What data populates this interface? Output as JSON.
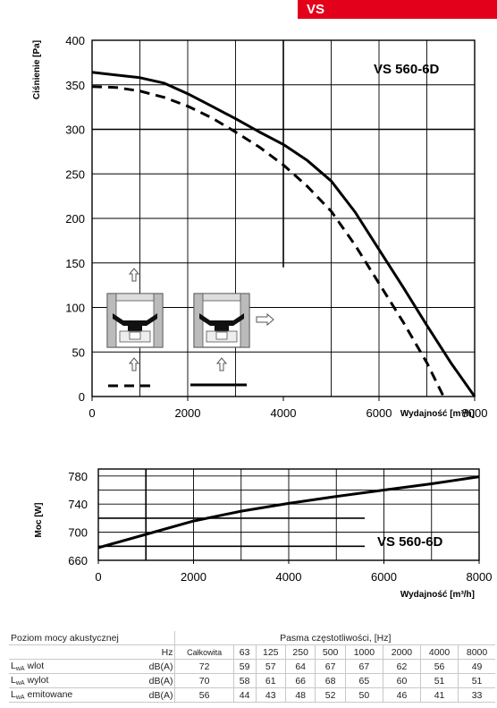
{
  "header": {
    "tag": "VS"
  },
  "chart_data": [
    {
      "type": "line",
      "title": "VS 560-6D",
      "xlabel": "Wydajność [m³/h]",
      "ylabel": "Ciśnienie [Pa]",
      "xlim": [
        0,
        8000
      ],
      "ylim": [
        0,
        400
      ],
      "xticks": [
        "0",
        "2000",
        "4000",
        "6000",
        "8000"
      ],
      "yticks": [
        "0",
        "50",
        "100",
        "150",
        "200",
        "250",
        "300",
        "350",
        "400"
      ],
      "grid": true,
      "series": [
        {
          "style": "solid",
          "x": [
            0,
            1000,
            1500,
            2000,
            2500,
            3000,
            3500,
            4000,
            4500,
            5000,
            5500,
            6000,
            6500,
            7000,
            7500,
            8000
          ],
          "y": [
            364,
            358,
            352,
            340,
            326,
            312,
            297,
            283,
            265,
            242,
            207,
            165,
            123,
            80,
            38,
            0
          ]
        },
        {
          "style": "dashed",
          "x": [
            0,
            500,
            1000,
            1500,
            2000,
            2500,
            3000,
            3500,
            4000,
            4500,
            5000,
            5500,
            6000,
            6500,
            7000,
            7350
          ],
          "y": [
            348,
            347,
            343,
            336,
            326,
            313,
            297,
            280,
            260,
            236,
            208,
            170,
            127,
            84,
            38,
            0
          ]
        }
      ]
    },
    {
      "type": "line",
      "title": "VS 560-6D",
      "xlabel": "Wydajność [m³/h]",
      "ylabel": "Moc [W]",
      "xlim": [
        0,
        8000
      ],
      "ylim": [
        660,
        790
      ],
      "xticks": [
        "0",
        "2000",
        "4000",
        "6000",
        "8000"
      ],
      "yticks": [
        "660",
        "700",
        "740",
        "780"
      ],
      "grid": true,
      "series": [
        {
          "style": "solid",
          "x": [
            0,
            1000,
            2000,
            3000,
            4000,
            5000,
            6000,
            7000,
            8000
          ],
          "y": [
            678,
            697,
            716,
            730,
            741,
            751,
            760,
            769,
            779
          ]
        }
      ]
    }
  ],
  "acoustic_table": {
    "title": "Poziom mocy akustycznej",
    "band_header": "Pasma częstotliwości, [Hz]",
    "unit_header": "Hz",
    "columns": [
      "Całkowita",
      "63",
      "125",
      "250",
      "500",
      "1000",
      "2000",
      "4000",
      "8000"
    ],
    "rows": [
      {
        "label": "wlot",
        "unit": "dB(A)",
        "values": [
          "72",
          "59",
          "57",
          "64",
          "67",
          "67",
          "62",
          "56",
          "49"
        ]
      },
      {
        "label": "wylot",
        "unit": "dB(A)",
        "values": [
          "70",
          "58",
          "61",
          "66",
          "68",
          "65",
          "60",
          "51",
          "51"
        ]
      },
      {
        "label": "emitowane",
        "unit": "dB(A)",
        "values": [
          "56",
          "44",
          "43",
          "48",
          "52",
          "50",
          "46",
          "41",
          "33"
        ]
      }
    ],
    "symbol": "L",
    "symbol_sub": "wA"
  }
}
